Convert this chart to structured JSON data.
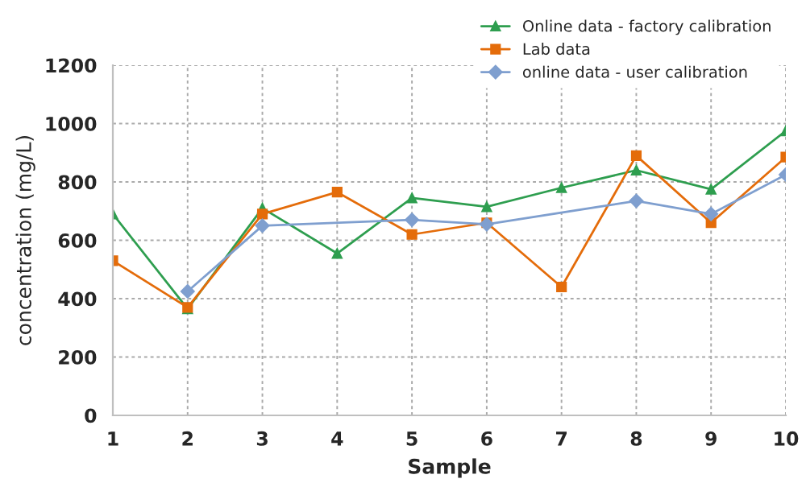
{
  "chart_data": {
    "type": "line",
    "xlabel": "Sample",
    "ylabel": "concentration (mg/L)",
    "x": [
      1,
      2,
      3,
      4,
      5,
      6,
      7,
      8,
      9,
      10
    ],
    "series": [
      {
        "name": "Online data - factory calibration",
        "color": "#2e9e4f",
        "marker": "triangle",
        "values": [
          690,
          365,
          710,
          555,
          745,
          715,
          780,
          840,
          775,
          975
        ]
      },
      {
        "name": "Lab data",
        "color": "#e46c0a",
        "marker": "square",
        "values": [
          530,
          370,
          690,
          765,
          620,
          660,
          440,
          890,
          660,
          885
        ]
      },
      {
        "name": "online data - user calibration",
        "color": "#7f9fcf",
        "marker": "diamond",
        "x": [
          2,
          3,
          5,
          6,
          8,
          9,
          10
        ],
        "values": [
          425,
          650,
          670,
          655,
          735,
          690,
          825
        ]
      }
    ],
    "xlim": [
      1,
      10
    ],
    "xticks": [
      1,
      2,
      3,
      4,
      5,
      6,
      7,
      8,
      9,
      10
    ],
    "ylim": [
      0,
      1200
    ],
    "yticks": [
      0,
      200,
      400,
      600,
      800,
      1000,
      1200
    ],
    "grid": true,
    "legend": "top right",
    "line_style": "solid"
  }
}
